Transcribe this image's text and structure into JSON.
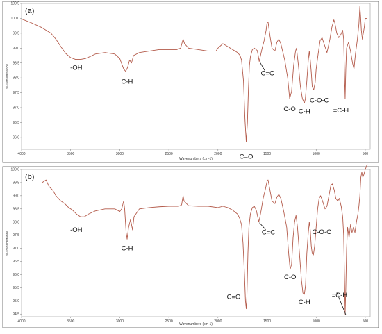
{
  "chart_data": [
    {
      "type": "line",
      "panel_label": "(a)",
      "xlabel": "Wavenumbers (cm-1)",
      "ylabel": "%Transmittance",
      "xlim": [
        4000,
        450
      ],
      "ylim": [
        95.6,
        100.5
      ],
      "x_ticks": [
        "4000",
        "3500",
        "3000",
        "2500",
        "2000",
        "1500",
        "1000",
        "500"
      ],
      "y_ticks": [
        "100.5",
        "100.0",
        "99.5",
        "99.0",
        "98.5",
        "98.0",
        "97.5",
        "97.0",
        "96.5",
        "96.0"
      ],
      "series": [
        {
          "values": [
            [
              4000,
              99.98
            ],
            [
              3900,
              99.85
            ],
            [
              3800,
              99.7
            ],
            [
              3700,
              99.5
            ],
            [
              3650,
              99.3
            ],
            [
              3600,
              99.05
            ],
            [
              3550,
              98.82
            ],
            [
              3500,
              98.68
            ],
            [
              3450,
              98.62
            ],
            [
              3400,
              98.62
            ],
            [
              3350,
              98.65
            ],
            [
              3300,
              98.72
            ],
            [
              3250,
              98.8
            ],
            [
              3150,
              98.85
            ],
            [
              3050,
              98.8
            ],
            [
              3000,
              98.65
            ],
            [
              2960,
              98.3
            ],
            [
              2940,
              98.22
            ],
            [
              2920,
              98.35
            ],
            [
              2900,
              98.6
            ],
            [
              2880,
              98.5
            ],
            [
              2860,
              98.75
            ],
            [
              2800,
              98.85
            ],
            [
              2700,
              98.9
            ],
            [
              2600,
              98.95
            ],
            [
              2500,
              98.95
            ],
            [
              2420,
              98.95
            ],
            [
              2380,
              99.0
            ],
            [
              2355,
              99.3
            ],
            [
              2340,
              99.15
            ],
            [
              2300,
              99.0
            ],
            [
              2200,
              98.95
            ],
            [
              2100,
              98.9
            ],
            [
              2020,
              98.9
            ],
            [
              2000,
              99.0
            ],
            [
              1950,
              99.15
            ],
            [
              1900,
              99.05
            ],
            [
              1850,
              98.95
            ],
            [
              1800,
              98.85
            ],
            [
              1775,
              98.75
            ],
            [
              1760,
              98.6
            ],
            [
              1740,
              97.9
            ],
            [
              1725,
              96.6
            ],
            [
              1712,
              95.85
            ],
            [
              1700,
              96.5
            ],
            [
              1690,
              97.6
            ],
            [
              1680,
              98.4
            ],
            [
              1670,
              98.7
            ],
            [
              1650,
              98.95
            ],
            [
              1630,
              99.0
            ],
            [
              1600,
              98.92
            ],
            [
              1590,
              98.75
            ],
            [
              1580,
              98.55
            ],
            [
              1570,
              98.7
            ],
            [
              1550,
              99.0
            ],
            [
              1530,
              99.25
            ],
            [
              1510,
              99.6
            ],
            [
              1500,
              99.85
            ],
            [
              1490,
              99.88
            ],
            [
              1470,
              99.4
            ],
            [
              1450,
              99.0
            ],
            [
              1420,
              98.9
            ],
            [
              1400,
              99.2
            ],
            [
              1380,
              99.3
            ],
            [
              1360,
              99.15
            ],
            [
              1320,
              98.6
            ],
            [
              1290,
              98.0
            ],
            [
              1270,
              97.3
            ],
            [
              1250,
              97.55
            ],
            [
              1230,
              98.4
            ],
            [
              1210,
              98.9
            ],
            [
              1200,
              99.0
            ],
            [
              1180,
              98.4
            ],
            [
              1160,
              97.7
            ],
            [
              1140,
              97.3
            ],
            [
              1120,
              97.15
            ],
            [
              1110,
              97.3
            ],
            [
              1095,
              97.9
            ],
            [
              1080,
              98.6
            ],
            [
              1070,
              98.9
            ],
            [
              1060,
              98.6
            ],
            [
              1050,
              98.2
            ],
            [
              1040,
              97.7
            ],
            [
              1025,
              97.6
            ],
            [
              1010,
              97.85
            ],
            [
              1000,
              98.3
            ],
            [
              980,
              98.8
            ],
            [
              960,
              99.25
            ],
            [
              940,
              99.35
            ],
            [
              920,
              99.15
            ],
            [
              890,
              98.85
            ],
            [
              860,
              99.3
            ],
            [
              840,
              99.7
            ],
            [
              820,
              99.95
            ],
            [
              810,
              99.85
            ],
            [
              790,
              99.5
            ],
            [
              770,
              99.35
            ],
            [
              750,
              99.45
            ],
            [
              730,
              99.6
            ],
            [
              720,
              99.3
            ],
            [
              712,
              98.2
            ],
            [
              705,
              97.3
            ],
            [
              698,
              98.3
            ],
            [
              690,
              99.0
            ],
            [
              670,
              99.2
            ],
            [
              650,
              98.9
            ],
            [
              630,
              98.5
            ],
            [
              615,
              98.3
            ],
            [
              600,
              98.8
            ],
            [
              580,
              99.3
            ],
            [
              565,
              99.8
            ],
            [
              555,
              100.4
            ],
            [
              548,
              100.1
            ],
            [
              540,
              99.6
            ],
            [
              530,
              99.3
            ],
            [
              510,
              99.7
            ],
            [
              500,
              100.0
            ],
            [
              480,
              100.0
            ]
          ]
        }
      ],
      "annotations": [
        {
          "text": "-OH",
          "x": 3400,
          "y": 98.62
        },
        {
          "text": "C-H",
          "x": 2940,
          "y": 98.22
        },
        {
          "text": "C=O",
          "x": 1712,
          "y": 95.85
        },
        {
          "text": "C=C",
          "x": 1580,
          "y": 98.55
        },
        {
          "text": "C-O",
          "x": 1270,
          "y": 97.3
        },
        {
          "text": "C-H",
          "x": 1120,
          "y": 97.15
        },
        {
          "text": "C-O-C",
          "x": 1025,
          "y": 97.6
        },
        {
          "text": "=C-H",
          "x": 705,
          "y": 97.3
        }
      ]
    },
    {
      "type": "line",
      "panel_label": "(b)",
      "xlabel": "Wavenumbers (cm-1)",
      "ylabel": "%Transmittance",
      "xlim": [
        4000,
        450
      ],
      "ylim": [
        94.4,
        100.0
      ],
      "x_ticks": [
        "4000",
        "3500",
        "3000",
        "2500",
        "2000",
        "1500",
        "1000",
        "500"
      ],
      "y_ticks": [
        "100.0",
        "99.5",
        "99.0",
        "98.5",
        "98.0",
        "97.5",
        "97.0",
        "96.5",
        "96.0",
        "95.5",
        "95.0",
        "94.5"
      ],
      "series": [
        {
          "values": [
            [
              3790,
              99.5
            ],
            [
              3750,
              99.6
            ],
            [
              3720,
              99.35
            ],
            [
              3680,
              99.2
            ],
            [
              3650,
              99.0
            ],
            [
              3600,
              98.8
            ],
            [
              3560,
              98.7
            ],
            [
              3520,
              98.55
            ],
            [
              3480,
              98.45
            ],
            [
              3440,
              98.3
            ],
            [
              3400,
              98.2
            ],
            [
              3360,
              98.2
            ],
            [
              3320,
              98.3
            ],
            [
              3250,
              98.42
            ],
            [
              3150,
              98.5
            ],
            [
              3050,
              98.5
            ],
            [
              3000,
              98.4
            ],
            [
              2980,
              98.5
            ],
            [
              2960,
              98.8
            ],
            [
              2950,
              98.5
            ],
            [
              2935,
              97.6
            ],
            [
              2925,
              97.35
            ],
            [
              2910,
              97.8
            ],
            [
              2890,
              98.1
            ],
            [
              2870,
              97.7
            ],
            [
              2855,
              98.2
            ],
            [
              2800,
              98.5
            ],
            [
              2700,
              98.55
            ],
            [
              2600,
              98.58
            ],
            [
              2500,
              98.6
            ],
            [
              2400,
              98.6
            ],
            [
              2370,
              98.65
            ],
            [
              2355,
              99.0
            ],
            [
              2345,
              98.8
            ],
            [
              2300,
              98.62
            ],
            [
              2200,
              98.6
            ],
            [
              2100,
              98.6
            ],
            [
              2000,
              98.55
            ],
            [
              1950,
              98.6
            ],
            [
              1900,
              98.55
            ],
            [
              1850,
              98.45
            ],
            [
              1800,
              98.3
            ],
            [
              1780,
              98.15
            ],
            [
              1760,
              97.9
            ],
            [
              1745,
              97.2
            ],
            [
              1730,
              96.0
            ],
            [
              1720,
              95.0
            ],
            [
              1712,
              94.7
            ],
            [
              1705,
              95.2
            ],
            [
              1695,
              96.8
            ],
            [
              1685,
              97.8
            ],
            [
              1670,
              98.3
            ],
            [
              1650,
              98.55
            ],
            [
              1630,
              98.6
            ],
            [
              1610,
              98.45
            ],
            [
              1595,
              98.2
            ],
            [
              1585,
              98.0
            ],
            [
              1575,
              98.15
            ],
            [
              1560,
              98.45
            ],
            [
              1540,
              98.9
            ],
            [
              1520,
              99.2
            ],
            [
              1500,
              99.55
            ],
            [
              1490,
              99.6
            ],
            [
              1470,
              99.2
            ],
            [
              1450,
              98.8
            ],
            [
              1420,
              98.7
            ],
            [
              1400,
              98.95
            ],
            [
              1380,
              99.05
            ],
            [
              1360,
              98.9
            ],
            [
              1330,
              98.4
            ],
            [
              1300,
              97.8
            ],
            [
              1280,
              96.8
            ],
            [
              1265,
              96.2
            ],
            [
              1250,
              96.4
            ],
            [
              1235,
              97.4
            ],
            [
              1220,
              98.0
            ],
            [
              1205,
              98.25
            ],
            [
              1190,
              97.8
            ],
            [
              1170,
              96.8
            ],
            [
              1150,
              95.8
            ],
            [
              1135,
              95.3
            ],
            [
              1120,
              95.25
            ],
            [
              1108,
              95.6
            ],
            [
              1095,
              96.8
            ],
            [
              1080,
              97.6
            ],
            [
              1070,
              98.0
            ],
            [
              1060,
              97.7
            ],
            [
              1050,
              97.1
            ],
            [
              1040,
              96.8
            ],
            [
              1028,
              96.75
            ],
            [
              1015,
              97.1
            ],
            [
              1000,
              97.8
            ],
            [
              985,
              98.5
            ],
            [
              970,
              98.9
            ],
            [
              955,
              99.0
            ],
            [
              935,
              98.8
            ],
            [
              910,
              98.5
            ],
            [
              890,
              98.6
            ],
            [
              870,
              99.0
            ],
            [
              850,
              99.4
            ],
            [
              835,
              99.45
            ],
            [
              815,
              99.2
            ],
            [
              800,
              98.9
            ],
            [
              780,
              98.8
            ],
            [
              765,
              98.9
            ],
            [
              745,
              98.6
            ],
            [
              730,
              98.2
            ],
            [
              720,
              97.5
            ],
            [
              712,
              96.0
            ],
            [
              705,
              94.5
            ],
            [
              698,
              95.5
            ],
            [
              690,
              97.0
            ],
            [
              680,
              97.8
            ],
            [
              665,
              97.4
            ],
            [
              650,
              97.9
            ],
            [
              635,
              97.6
            ],
            [
              620,
              97.8
            ],
            [
              605,
              97.6
            ],
            [
              590,
              98.0
            ],
            [
              575,
              98.3
            ],
            [
              565,
              98.6
            ],
            [
              555,
              99.0
            ],
            [
              545,
              99.7
            ],
            [
              535,
              99.9
            ],
            [
              525,
              99.7
            ],
            [
              515,
              99.8
            ],
            [
              500,
              100.0
            ],
            [
              480,
              100.2
            ]
          ]
        }
      ],
      "annotations": [
        {
          "text": "-OH",
          "x": 3400,
          "y": 98.2
        },
        {
          "text": "C-H",
          "x": 2925,
          "y": 97.35
        },
        {
          "text": "C=O",
          "x": 1712,
          "y": 94.7
        },
        {
          "text": "C=C",
          "x": 1585,
          "y": 98.0
        },
        {
          "text": "C-O",
          "x": 1265,
          "y": 96.2
        },
        {
          "text": "C-H",
          "x": 1120,
          "y": 95.25
        },
        {
          "text": "C-O-C",
          "x": 1028,
          "y": 96.75
        },
        {
          "text": "=C-H",
          "x": 705,
          "y": 94.5
        }
      ]
    }
  ],
  "colors": {
    "spectrum": "#b35a4a",
    "frame": "#7a7a7a",
    "text": "#111111"
  }
}
